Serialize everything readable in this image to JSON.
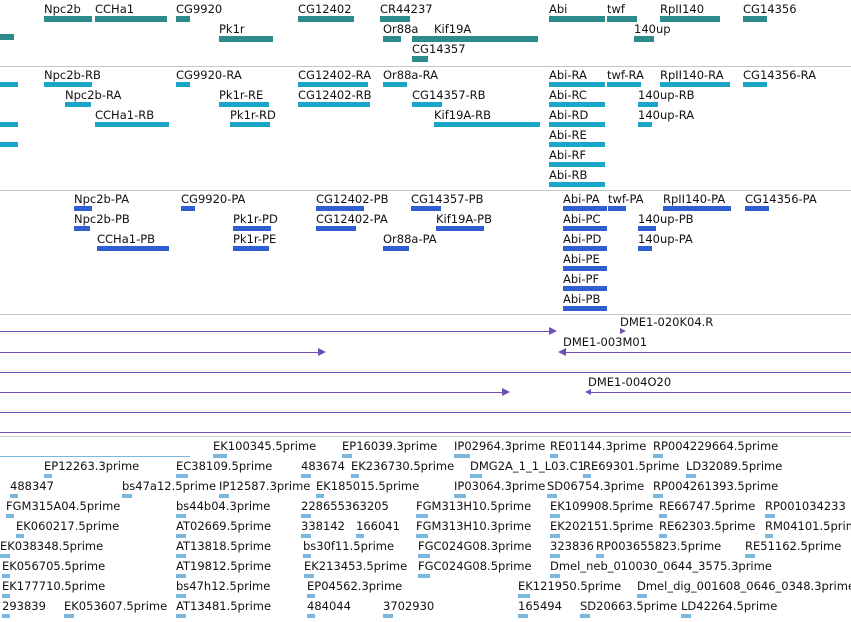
{
  "colors": {
    "gene": "#2e8b8b",
    "transcript_r": "#1aa6c8",
    "transcript_p": "#2f5fd0",
    "clone": "#7050b0",
    "est": "#7ab8e0",
    "separator": "#c7c7c7"
  },
  "tracks": {
    "genes": [
      "Npc2b",
      "CCHa1",
      "CG9920",
      "CG12402",
      "CR44237",
      "Abi",
      "twf",
      "RpII140",
      "CG14356",
      "Pk1r",
      "Or88a",
      "Kif19A",
      "140up",
      "CG14357"
    ],
    "transcripts_r": [
      "Npc2b-RB",
      "CG9920-RA",
      "CG12402-RA",
      "Or88a-RA",
      "Abi-RA",
      "twf-RA",
      "RpII140-RA",
      "CG14356-RA",
      "Npc2b-RA",
      "Pk1r-RE",
      "CG12402-RB",
      "CG14357-RB",
      "Abi-RC",
      "140up-RB",
      "CCHa1-RB",
      "Pk1r-RD",
      "Kif19A-RB",
      "Abi-RD",
      "140up-RA",
      "Abi-RE",
      "Abi-RF",
      "Abi-RB"
    ],
    "transcripts_p": [
      "Npc2b-PA",
      "CG9920-PA",
      "CG12402-PB",
      "CG14357-PB",
      "Abi-PA",
      "twf-PA",
      "RpII140-PA",
      "CG14356-PA",
      "Npc2b-PB",
      "Pk1r-PD",
      "CG12402-PA",
      "Kif19A-PB",
      "Abi-PC",
      "140up-PB",
      "CCHa1-PB",
      "Pk1r-PE",
      "Or88a-PA",
      "Abi-PD",
      "140up-PA",
      "Abi-PE",
      "Abi-PF",
      "Abi-PB"
    ],
    "clones": [
      "DME1-020K04.R",
      "DME1-003M01",
      "DME1-004O20"
    ],
    "ests": [
      "EK100345.5prime",
      "EP16039.3prime",
      "IP02964.3prime",
      "RE01144.3prime",
      "RP004229664.5prime",
      "EP12263.3prime",
      "EC38109.5prime",
      "483674",
      "EK236730.5prime",
      "DMG2A_1_1_L03.C1",
      "RE69301.5prime",
      "LD32089.5prime",
      "488347",
      "bs47a12.5prime",
      "IP12587.3prime",
      "EK185015.5prime",
      "IP03064.3prime",
      "SD06754.3prime",
      "RP004261393.5prime",
      "FGM315A04.5prime",
      "bs44b04.3prime",
      "228655363205",
      "FGM313H10.5prime",
      "EK109908.5prime",
      "RE66747.5prime",
      "RP001034233",
      "EK060217.5prime",
      "AT02669.5prime",
      "338142",
      "166041",
      "FGM313H10.3prime",
      "EK202151.5prime",
      "RE62303.5prime",
      "RM04101.5prime",
      "EK038348.5prime",
      "AT13818.5prime",
      "bs30f11.5prime",
      "FGC024G08.3prime",
      "323836",
      "RP003655823.5prime",
      "RE51162.5prime",
      "EK056705.5prime",
      "AT19812.5prime",
      "EK213453.5prime",
      "FGC024G08.5prime",
      "Dmel_neb_010030_0644_3575.3prime",
      "EK177710.5prime",
      "bs47h12.5prime",
      "EP04562.3prime",
      "EK121950.5prime",
      "Dmel_dig_001608_0646_0348.3prime",
      "293839",
      "EK053607.5prime",
      "AT13481.5prime",
      "484044",
      "3702930",
      "165494",
      "SD20663.5prime",
      "LD42264.5prime"
    ]
  }
}
